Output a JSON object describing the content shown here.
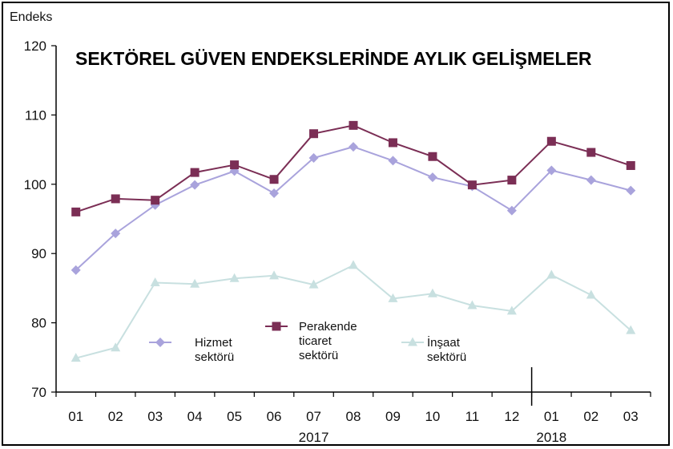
{
  "chart_data": {
    "type": "line",
    "title": "SEKTÖREL GÜVEN ENDEKSLERİNDE AYLIK GELİŞMELER",
    "ylabel": "Endeks",
    "xlabel": "",
    "ylim": [
      70,
      120
    ],
    "yticks": [
      70,
      80,
      90,
      100,
      110,
      120
    ],
    "categories": [
      "01",
      "02",
      "03",
      "04",
      "05",
      "06",
      "07",
      "08",
      "09",
      "10",
      "11",
      "12",
      "01",
      "02",
      "03"
    ],
    "year_labels": [
      {
        "label": "2017",
        "category_index": 6
      },
      {
        "label": "2018",
        "category_index": 12
      }
    ],
    "series": [
      {
        "name": "Hizmet sektörü",
        "legend_lines": [
          "Hizmet",
          "sektörü"
        ],
        "color": "#a9a3dc",
        "marker": "diamond",
        "values": [
          87.6,
          92.9,
          97.0,
          99.9,
          101.9,
          98.7,
          103.8,
          105.4,
          103.4,
          101.0,
          99.7,
          96.2,
          102.0,
          100.6,
          99.1
        ]
      },
      {
        "name": "Perakende ticaret sektörü",
        "legend_lines": [
          "Perakende",
          "ticaret",
          "sektörü"
        ],
        "color": "#7b2e55",
        "marker": "square",
        "values": [
          96.0,
          97.9,
          97.7,
          101.7,
          102.8,
          100.7,
          107.3,
          108.5,
          106.0,
          104.0,
          99.9,
          100.6,
          106.2,
          104.6,
          102.7
        ]
      },
      {
        "name": "İnşaat sektörü",
        "legend_lines": [
          "İnşaat",
          "sektörü"
        ],
        "color": "#c8e0e0",
        "marker": "triangle",
        "values": [
          74.9,
          76.4,
          85.8,
          85.6,
          86.4,
          86.8,
          85.5,
          88.3,
          83.5,
          84.2,
          82.5,
          81.7,
          86.9,
          84.0,
          78.9
        ]
      }
    ],
    "legend": "inside-bottom",
    "grid": false
  }
}
